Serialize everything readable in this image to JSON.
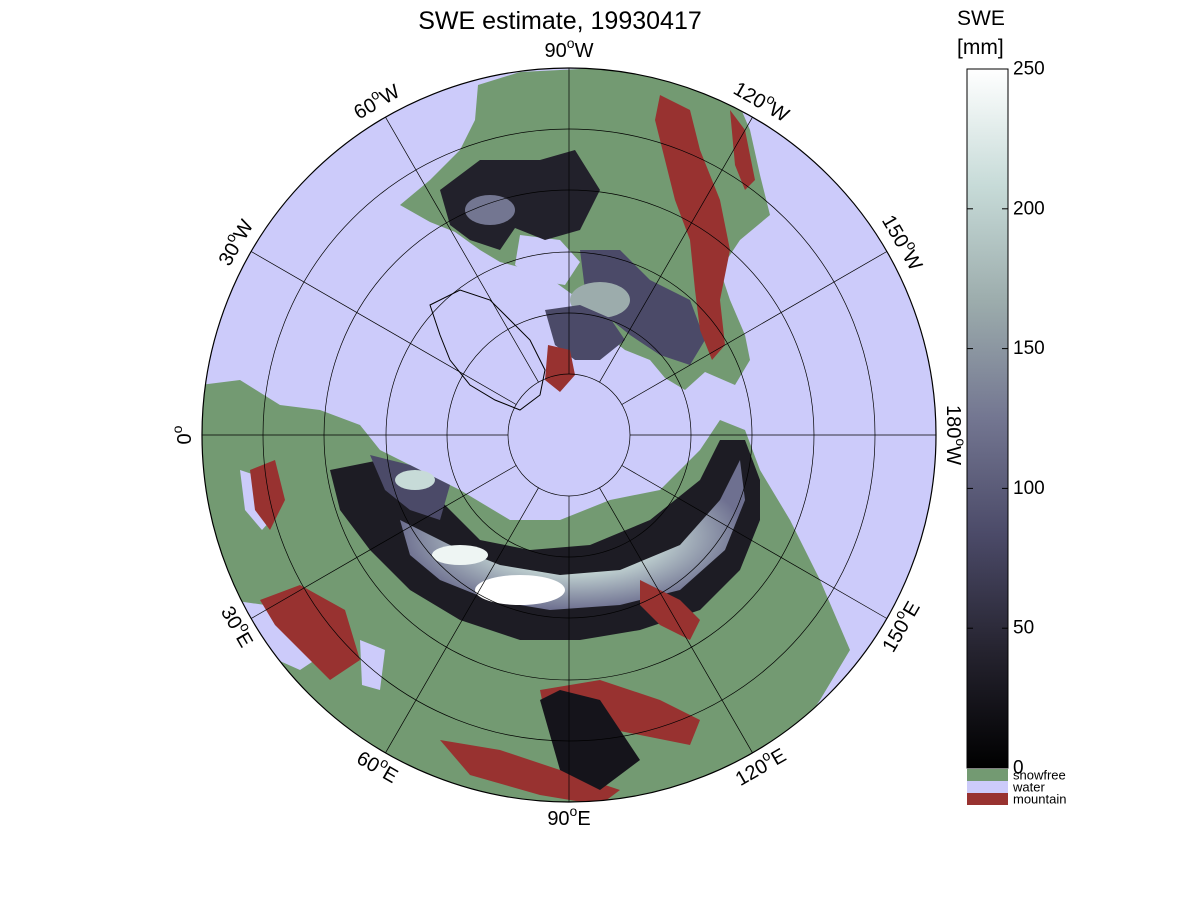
{
  "title": "SWE estimate, 19930417",
  "map": {
    "projection": "north polar stereographic",
    "colors": {
      "water": "#cccbfa",
      "snowfree": "#739a72",
      "mountain": "#983230",
      "coastline": "#000000",
      "gridline": "#000000"
    },
    "meridian_labels": [
      {
        "deg": 0,
        "name": "0",
        "suffix": "",
        "show_degree": true
      },
      {
        "deg": 30,
        "name": "30",
        "suffix": "W",
        "show_degree": true
      },
      {
        "deg": 60,
        "name": "60",
        "suffix": "W",
        "show_degree": true
      },
      {
        "deg": 90,
        "name": "90",
        "suffix": "W",
        "show_degree": true
      },
      {
        "deg": 120,
        "name": "120",
        "suffix": "W",
        "show_degree": true
      },
      {
        "deg": 150,
        "name": "150",
        "suffix": "W",
        "show_degree": true
      },
      {
        "deg": 180,
        "name": "180",
        "suffix": "W",
        "show_degree": true
      },
      {
        "deg": 210,
        "name": "150",
        "suffix": "E",
        "show_degree": true
      },
      {
        "deg": 240,
        "name": "120",
        "suffix": "E",
        "show_degree": true
      },
      {
        "deg": 270,
        "name": "90",
        "suffix": "E",
        "show_degree": true
      },
      {
        "deg": 300,
        "name": "60",
        "suffix": "E",
        "show_degree": true
      },
      {
        "deg": 330,
        "name": "30",
        "suffix": "E",
        "show_degree": true
      }
    ]
  },
  "colorbar": {
    "title_line1": "SWE",
    "title_line2": "[mm]",
    "min": 0,
    "max": 250,
    "ticks": [
      0,
      50,
      100,
      150,
      200,
      250
    ],
    "gradient_stops": [
      "#000000",
      "#25232f",
      "#4b4a68",
      "#737691",
      "#9cacac",
      "#c7dbd8",
      "#ffffff"
    ],
    "categories": [
      {
        "label": "snowfree",
        "color": "#739a72"
      },
      {
        "label": "water",
        "color": "#cccbfa"
      },
      {
        "label": "mountain",
        "color": "#983230"
      }
    ]
  }
}
